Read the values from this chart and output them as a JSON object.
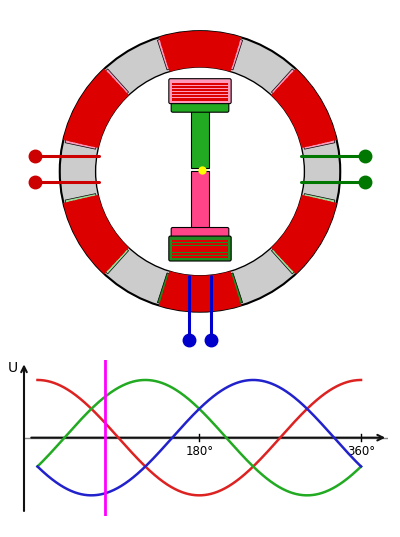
{
  "fig_width": 4.0,
  "fig_height": 5.37,
  "dpi": 100,
  "bg_color": "#ffffff",
  "stator_gray": "#cccccc",
  "stator_outline": "#444444",
  "rotor_green": "#22aa22",
  "rotor_pink": "#ff4488",
  "winding_red": "#dd0000",
  "winding_pink": "#ff99bb",
  "winding_green_light": "#99dd99",
  "winding_green_dark": "#228822",
  "connector_red": "#cc0000",
  "connector_green": "#007700",
  "connector_blue": "#0000cc",
  "yellow_dot": "#ffff00",
  "sine_red": "#dd2222",
  "sine_green": "#22aa22",
  "sine_blue": "#2222cc",
  "magenta": "#ff00ff",
  "axis_black": "#111111",
  "gray_line": "#888888",
  "label_U": "U",
  "label_180": "180°",
  "label_360": "360°",
  "magenta_deg": 75
}
